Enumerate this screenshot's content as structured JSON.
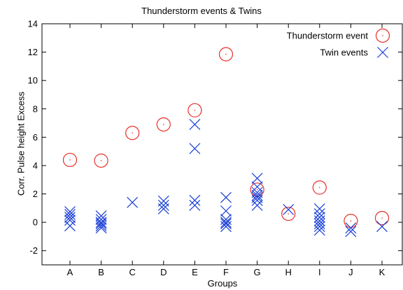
{
  "chart_data": {
    "type": "scatter",
    "title": "Thunderstorm events  & Twins",
    "xlabel": "Groups",
    "ylabel": "Corr. Pulse height Excess",
    "categories": [
      "A",
      "B",
      "C",
      "D",
      "E",
      "F",
      "G",
      "H",
      "I",
      "J",
      "K"
    ],
    "ylim": [
      -3,
      14
    ],
    "yticks": [
      -2,
      0,
      2,
      4,
      6,
      8,
      10,
      12,
      14
    ],
    "grid": false,
    "legend_position": "top-right",
    "series": [
      {
        "name": "Thunderstorm event",
        "marker": "circle",
        "color": "#e8302a",
        "points": [
          {
            "x": "A",
            "y": 4.4
          },
          {
            "x": "B",
            "y": 4.35
          },
          {
            "x": "C",
            "y": 6.3
          },
          {
            "x": "D",
            "y": 6.9
          },
          {
            "x": "E",
            "y": 7.9
          },
          {
            "x": "F",
            "y": 11.85
          },
          {
            "x": "G",
            "y": 2.3
          },
          {
            "x": "H",
            "y": 0.6
          },
          {
            "x": "I",
            "y": 2.45
          },
          {
            "x": "J",
            "y": 0.1
          },
          {
            "x": "K",
            "y": 0.3
          }
        ]
      },
      {
        "name": "Twin events",
        "marker": "x",
        "color": "#1a3fd6",
        "points": [
          {
            "x": "A",
            "y": 0.75
          },
          {
            "x": "A",
            "y": 0.55
          },
          {
            "x": "A",
            "y": 0.35
          },
          {
            "x": "A",
            "y": 0.15
          },
          {
            "x": "A",
            "y": -0.25
          },
          {
            "x": "B",
            "y": 0.45
          },
          {
            "x": "B",
            "y": 0.2
          },
          {
            "x": "B",
            "y": 0.0
          },
          {
            "x": "B",
            "y": -0.1
          },
          {
            "x": "B",
            "y": -0.25
          },
          {
            "x": "B",
            "y": -0.4
          },
          {
            "x": "C",
            "y": 1.4
          },
          {
            "x": "D",
            "y": 1.5
          },
          {
            "x": "D",
            "y": 1.2
          },
          {
            "x": "D",
            "y": 0.95
          },
          {
            "x": "E",
            "y": 6.9
          },
          {
            "x": "E",
            "y": 5.2
          },
          {
            "x": "E",
            "y": 1.55
          },
          {
            "x": "E",
            "y": 1.2
          },
          {
            "x": "F",
            "y": 1.75
          },
          {
            "x": "F",
            "y": 0.8
          },
          {
            "x": "F",
            "y": 0.2
          },
          {
            "x": "F",
            "y": 0.0
          },
          {
            "x": "F",
            "y": -0.1
          },
          {
            "x": "F",
            "y": -0.3
          },
          {
            "x": "G",
            "y": 3.1
          },
          {
            "x": "G",
            "y": 2.5
          },
          {
            "x": "G",
            "y": 2.1
          },
          {
            "x": "G",
            "y": 1.9
          },
          {
            "x": "G",
            "y": 1.75
          },
          {
            "x": "G",
            "y": 1.55
          },
          {
            "x": "G",
            "y": 1.2
          },
          {
            "x": "H",
            "y": 0.9
          },
          {
            "x": "I",
            "y": 0.95
          },
          {
            "x": "I",
            "y": 0.6
          },
          {
            "x": "I",
            "y": 0.35
          },
          {
            "x": "I",
            "y": 0.1
          },
          {
            "x": "I",
            "y": -0.1
          },
          {
            "x": "I",
            "y": -0.3
          },
          {
            "x": "I",
            "y": -0.55
          },
          {
            "x": "J",
            "y": -0.4
          },
          {
            "x": "J",
            "y": -0.65
          },
          {
            "x": "K",
            "y": -0.3
          }
        ]
      }
    ]
  }
}
